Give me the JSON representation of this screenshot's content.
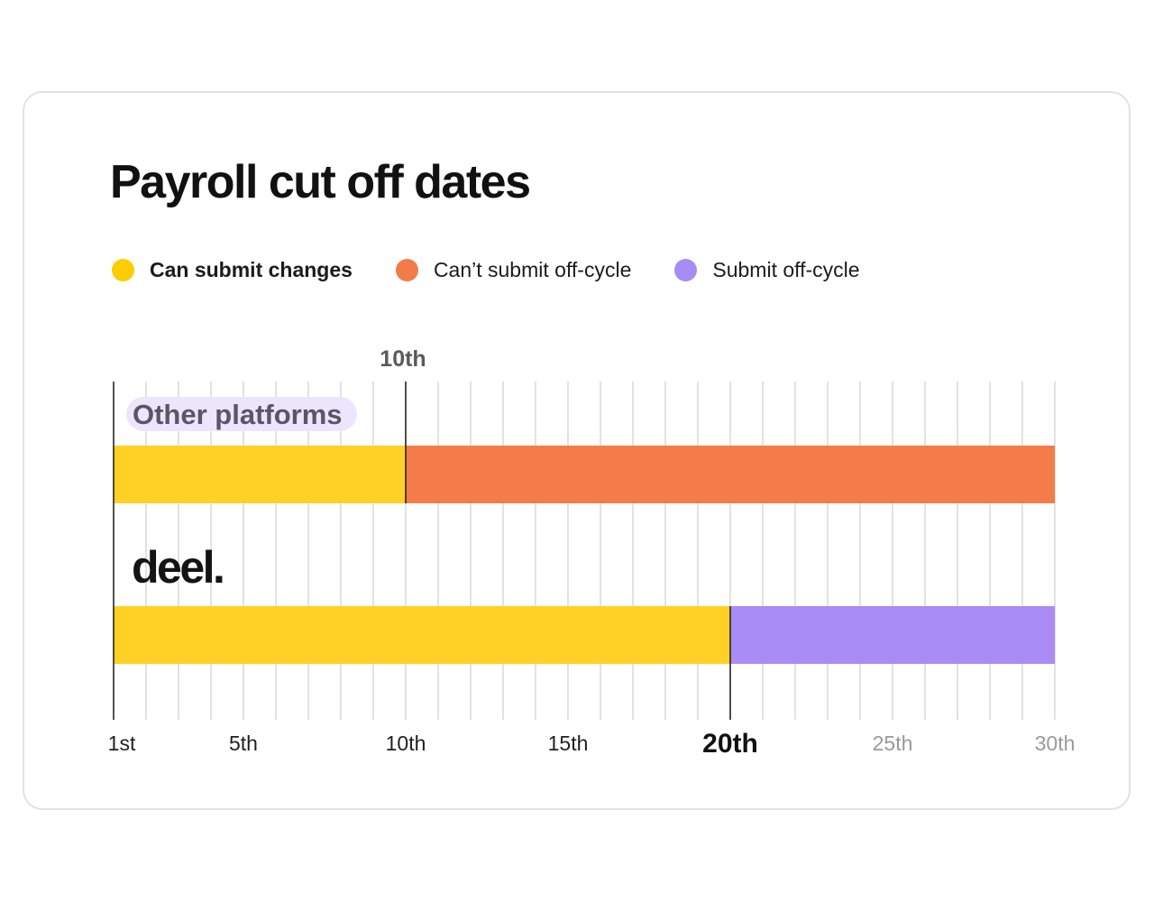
{
  "title": "Payroll cut off dates",
  "legend": [
    {
      "label": "Can submit changes",
      "color": "#FFCC00",
      "bold": true
    },
    {
      "label": "Can’t submit off-cycle",
      "color": "#F27B48",
      "bold": false
    },
    {
      "label": "Submit off-cycle",
      "color": "#A78BF5",
      "bold": false
    }
  ],
  "chart_data": {
    "type": "bar",
    "orientation": "horizontal-stacked",
    "xlim": [
      1,
      30
    ],
    "xticks": [
      {
        "day": 1,
        "label": "1st",
        "style": "normal"
      },
      {
        "day": 5,
        "label": "5th",
        "style": "normal"
      },
      {
        "day": 10,
        "label": "10th",
        "style": "normal"
      },
      {
        "day": 15,
        "label": "15th",
        "style": "normal"
      },
      {
        "day": 20,
        "label": "20th",
        "style": "bold"
      },
      {
        "day": 25,
        "label": "25th",
        "style": "muted"
      },
      {
        "day": 30,
        "label": "30th",
        "style": "muted"
      }
    ],
    "grid": true,
    "top_marker": {
      "day": 10,
      "label": "10th"
    },
    "rows": [
      {
        "label": "Other platforms",
        "segments": [
          {
            "from": 1,
            "to": 10,
            "category": "Can submit changes",
            "color": "#FFD026"
          },
          {
            "from": 10,
            "to": 30,
            "category": "Can’t submit off-cycle",
            "color": "#F47B4A"
          }
        ]
      },
      {
        "label": "deel.",
        "segments": [
          {
            "from": 1,
            "to": 20,
            "category": "Can submit changes",
            "color": "#FFD026"
          },
          {
            "from": 20,
            "to": 30,
            "category": "Submit off-cycle",
            "color": "#A98CF6"
          }
        ]
      }
    ]
  }
}
